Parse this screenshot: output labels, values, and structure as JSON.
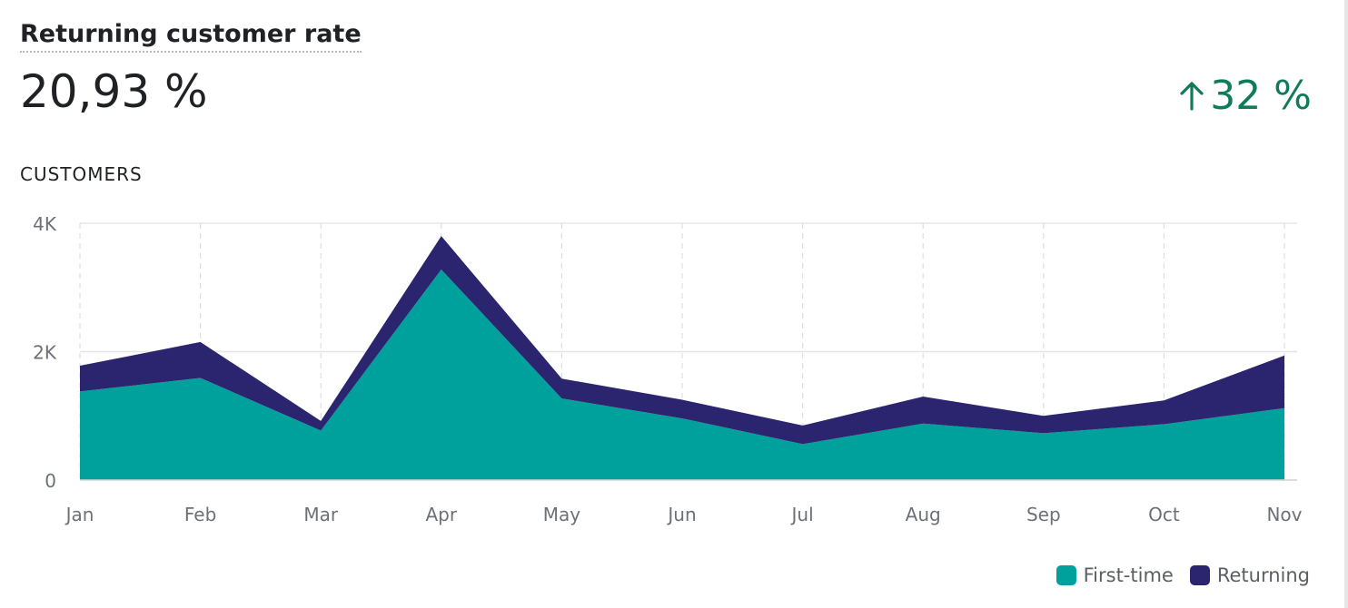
{
  "metric": {
    "title": "Returning customer rate",
    "value": "20,93 %",
    "change": "32 %",
    "change_icon": "arrow-up-icon",
    "change_color": "#0f7b5a"
  },
  "section_label": "CUSTOMERS",
  "chart_data": {
    "type": "area",
    "stacked": true,
    "categories": [
      "Jan",
      "Feb",
      "Mar",
      "Apr",
      "May",
      "Jun",
      "Jul",
      "Aug",
      "Sep",
      "Oct",
      "Nov"
    ],
    "series": [
      {
        "name": "First-time",
        "color": "#00a19c",
        "values": [
          1380,
          1590,
          770,
          3280,
          1270,
          960,
          560,
          880,
          730,
          870,
          1120
        ]
      },
      {
        "name": "Returning",
        "color": "#2b2570",
        "values": [
          400,
          560,
          150,
          520,
          310,
          290,
          290,
          420,
          270,
          370,
          820
        ]
      }
    ],
    "ylim": [
      0,
      4000
    ],
    "yticks": [
      0,
      2000,
      4000
    ],
    "ytick_labels": [
      "0",
      "2K",
      "4K"
    ],
    "grid": true,
    "legend_position": "bottom-right"
  }
}
